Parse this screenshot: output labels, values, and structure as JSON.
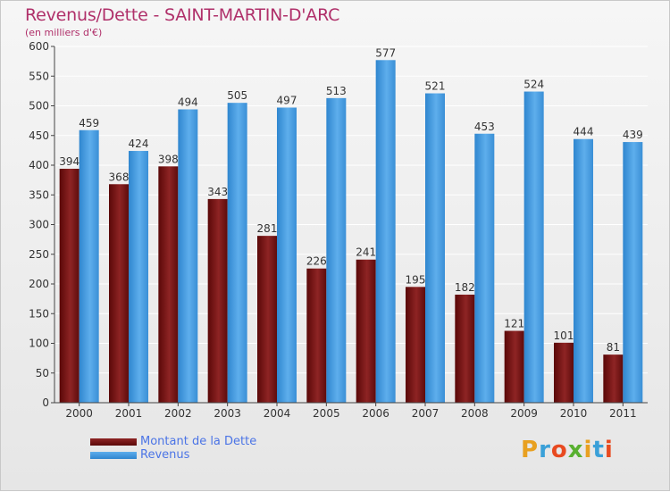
{
  "header": {
    "title": "Revenus/Dette - SAINT-MARTIN-D'ARC",
    "subtitle": "(en milliers d'€)"
  },
  "logo": {
    "text": "Proxiti",
    "colors": [
      "#e8a020",
      "#3aa0d8",
      "#e84a20",
      "#58b030",
      "#e8a020",
      "#3aa0d8",
      "#e84a20"
    ]
  },
  "chart_data": {
    "type": "bar",
    "title": "Revenus/Dette - SAINT-MARTIN-D'ARC",
    "ylabel": "(en milliers d'€)",
    "xlabel": "",
    "categories": [
      "2000",
      "2001",
      "2002",
      "2003",
      "2004",
      "2005",
      "2006",
      "2007",
      "2008",
      "2009",
      "2010",
      "2011"
    ],
    "series": [
      {
        "name": "Montant de la Dette",
        "color": "#7a1a1a",
        "values": [
          394,
          368,
          398,
          343,
          281,
          226,
          241,
          195,
          182,
          121,
          101,
          81
        ]
      },
      {
        "name": "Revenus",
        "color": "#4a9ee0",
        "values": [
          459,
          424,
          494,
          505,
          497,
          513,
          577,
          521,
          453,
          524,
          444,
          439
        ]
      }
    ],
    "ylim": [
      0,
      600
    ],
    "yticks": [
      0,
      50,
      100,
      150,
      200,
      250,
      300,
      350,
      400,
      450,
      500,
      550,
      600
    ],
    "grid": true,
    "legend": "bottom-left"
  }
}
